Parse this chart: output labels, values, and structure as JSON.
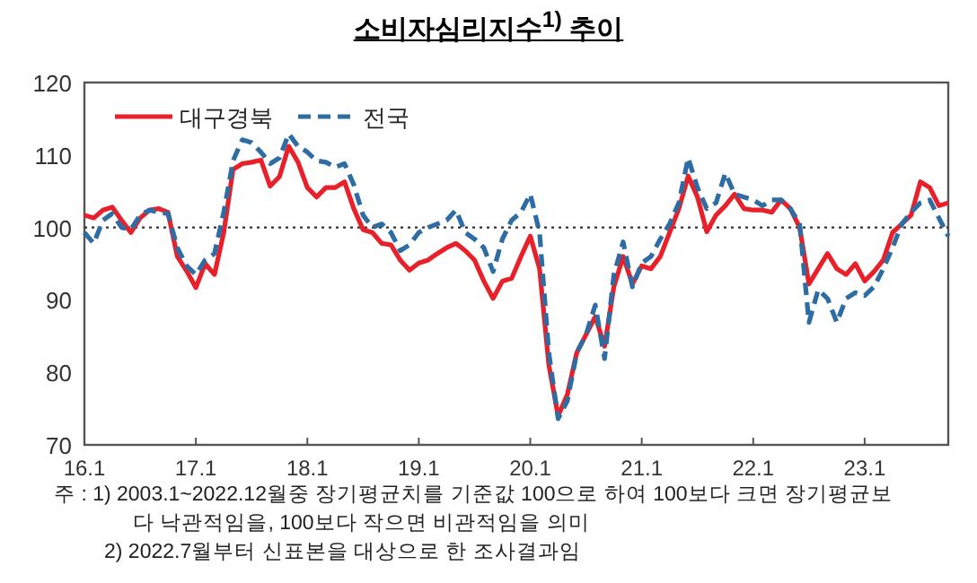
{
  "chart_data": {
    "type": "line",
    "title": "소비자심리지수$^{1)}$ 추이",
    "xlim": [
      "2016-01",
      "2023-10"
    ],
    "xticks": [
      {
        "value": "2016-01",
        "label": "16.1"
      },
      {
        "value": "2017-01",
        "label": "17.1"
      },
      {
        "value": "2018-01",
        "label": "18.1"
      },
      {
        "value": "2019-01",
        "label": "19.1"
      },
      {
        "value": "2020-01",
        "label": "20.1"
      },
      {
        "value": "2021-01",
        "label": "21.1"
      },
      {
        "value": "2022-01",
        "label": "22.1"
      },
      {
        "value": "2023-01",
        "label": "23.1"
      }
    ],
    "ylim": [
      70,
      120
    ],
    "yticks": [
      70,
      80,
      90,
      100,
      110,
      120
    ],
    "x": [
      "2016-01",
      "2016-02",
      "2016-03",
      "2016-04",
      "2016-05",
      "2016-06",
      "2016-07",
      "2016-08",
      "2016-09",
      "2016-10",
      "2016-11",
      "2016-12",
      "2017-01",
      "2017-02",
      "2017-03",
      "2017-04",
      "2017-05",
      "2017-06",
      "2017-07",
      "2017-08",
      "2017-09",
      "2017-10",
      "2017-11",
      "2017-12",
      "2018-01",
      "2018-02",
      "2018-03",
      "2018-04",
      "2018-05",
      "2018-06",
      "2018-07",
      "2018-08",
      "2018-09",
      "2018-10",
      "2018-11",
      "2018-12",
      "2019-01",
      "2019-02",
      "2019-03",
      "2019-04",
      "2019-05",
      "2019-06",
      "2019-07",
      "2019-08",
      "2019-09",
      "2019-10",
      "2019-11",
      "2019-12",
      "2020-01",
      "2020-02",
      "2020-03",
      "2020-04",
      "2020-05",
      "2020-06",
      "2020-07",
      "2020-08",
      "2020-09",
      "2020-10",
      "2020-11",
      "2020-12",
      "2021-01",
      "2021-02",
      "2021-03",
      "2021-04",
      "2021-05",
      "2021-06",
      "2021-07",
      "2021-08",
      "2021-09",
      "2021-10",
      "2021-11",
      "2021-12",
      "2022-01",
      "2022-02",
      "2022-03",
      "2022-04",
      "2022-05",
      "2022-06",
      "2022-07",
      "2022-08",
      "2022-09",
      "2022-10",
      "2022-11",
      "2022-12",
      "2023-01",
      "2023-02",
      "2023-03",
      "2023-04",
      "2023-05",
      "2023-06",
      "2023-07",
      "2023-08",
      "2023-09",
      "2023-10"
    ],
    "series": [
      {
        "name": "대구경북",
        "color": "#e8202a",
        "line_style": "solid",
        "values": [
          101.7,
          101.3,
          102.4,
          102.8,
          101,
          99.3,
          101.3,
          102.4,
          102.6,
          102.1,
          96,
          94,
          91.7,
          95,
          93.5,
          99.3,
          108,
          108.8,
          109,
          109.3,
          105.7,
          107,
          111.2,
          109,
          105.5,
          104.2,
          105.5,
          105.5,
          106.3,
          102.6,
          99.7,
          99.3,
          97.8,
          97.6,
          95.5,
          94.1,
          95.1,
          95.5,
          96.4,
          97.2,
          97.8,
          96.8,
          95.5,
          92.6,
          90.2,
          92.6,
          93,
          96,
          98.8,
          94.3,
          81,
          74,
          77,
          82.7,
          85.2,
          87.7,
          83.6,
          91.8,
          96,
          92.2,
          94.7,
          94.3,
          96,
          99.3,
          102.6,
          107.1,
          104.2,
          99.4,
          101.7,
          103,
          104.6,
          102.6,
          102.4,
          102.4,
          102.1,
          103.8,
          102.6,
          100,
          92.2,
          94.3,
          96.4,
          94.3,
          93.5,
          95,
          92.6,
          93.9,
          95.5,
          99.3,
          100.5,
          101.7,
          106.3,
          105.5,
          103,
          103.4
        ]
      },
      {
        "name": "전국",
        "color": "#2e6da4",
        "line_style": "dashed",
        "values": [
          99.3,
          97.8,
          101,
          101.9,
          100,
          99.7,
          101.7,
          102.4,
          102.1,
          101.9,
          97.2,
          94.7,
          93.5,
          95.5,
          96.4,
          102.1,
          109.2,
          112.1,
          111.7,
          110.4,
          108.8,
          109.6,
          112.9,
          111.2,
          110.4,
          109.2,
          109,
          108.3,
          108.8,
          105.9,
          101.7,
          100,
          100.5,
          99.3,
          96.8,
          97.6,
          99.3,
          100,
          100.5,
          101,
          102.4,
          99.3,
          98.4,
          97.2,
          93.9,
          98.4,
          101,
          102.1,
          104.6,
          99.3,
          82.7,
          73.6,
          76.1,
          82.7,
          85.2,
          89.3,
          81.9,
          93.5,
          98,
          91.8,
          95.1,
          96,
          98.4,
          100.5,
          103.4,
          109.6,
          105.5,
          102.6,
          103.4,
          107.5,
          104.6,
          104.2,
          103.8,
          103,
          103.8,
          103.8,
          102.6,
          100.5,
          86.9,
          91.4,
          90.2,
          86.9,
          90.2,
          91,
          90.6,
          91.8,
          94.3,
          97.2,
          100.5,
          102.1,
          103.4,
          103.8,
          101.3,
          98.8
        ]
      }
    ],
    "ref_lines": [
      {
        "axis": "y",
        "value": 100,
        "color": "#333333",
        "line_style": "dotted"
      }
    ],
    "legend": "top left",
    "grid": false,
    "annotations": [
      "주 : 1) 2003.1~2022.12월중 장기평균치를 기준값 100으로 하여 100보다 크면 장기평균보다 낙관적임을, 100보다 작으면 비관적임을 의미",
      "2) 2022.7월부터 신표본을 대상으로 한 조사결과임"
    ]
  }
}
